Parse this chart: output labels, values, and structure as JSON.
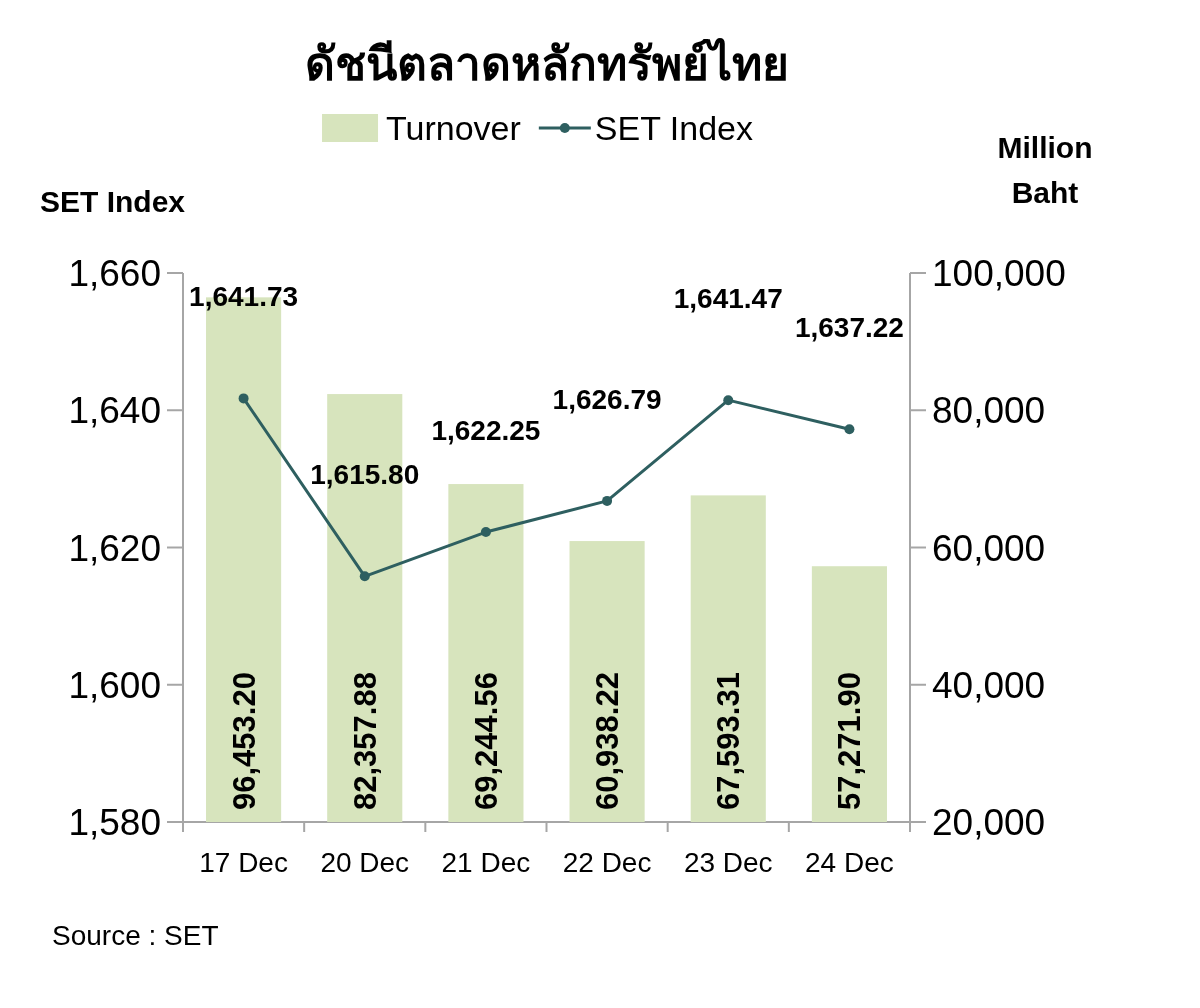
{
  "chart_data": {
    "type": "bar",
    "title": "ดัชนีตลาดหลักทรัพย์ไทย",
    "categories": [
      "17 Dec",
      "20 Dec",
      "21 Dec",
      "22 Dec",
      "23 Dec",
      "24 Dec"
    ],
    "series": [
      {
        "name": "Turnover",
        "axis": "y2",
        "color": "#d7e4bd",
        "values": [
          96453.2,
          82357.88,
          69244.56,
          60938.22,
          67593.31,
          57271.9
        ],
        "value_labels": [
          "96,453.20",
          "82,357.88",
          "69,244.56",
          "60,938.22",
          "67,593.31",
          "57,271.90"
        ]
      },
      {
        "name": "SET Index",
        "type": "line",
        "color": "#2e5f60",
        "values": [
          1641.73,
          1615.8,
          1622.25,
          1626.79,
          1641.47,
          1637.22
        ],
        "value_labels": [
          "1,641.73",
          "1,615.80",
          "1,622.25",
          "1,626.79",
          "1,641.47",
          "1,637.22"
        ]
      }
    ],
    "ylabel": "SET Index",
    "y2label": "Million Baht",
    "ylim": [
      1580,
      1660
    ],
    "yticks": [
      {
        "value": 1580,
        "label": "1,580"
      },
      {
        "value": 1600,
        "label": "1,600"
      },
      {
        "value": 1620,
        "label": "1,620"
      },
      {
        "value": 1640,
        "label": "1,640"
      },
      {
        "value": 1660,
        "label": "1,660"
      }
    ],
    "y2lim": [
      20000,
      100000
    ],
    "y2ticks": [
      {
        "value": 20000,
        "label": "20,000"
      },
      {
        "value": 40000,
        "label": "40,000"
      },
      {
        "value": 60000,
        "label": "60,000"
      },
      {
        "value": 80000,
        "label": "80,000"
      },
      {
        "value": 100000,
        "label": "100,000"
      }
    ],
    "legend": "top",
    "marker": "circle",
    "annotations": [
      "Source : SET"
    ]
  }
}
